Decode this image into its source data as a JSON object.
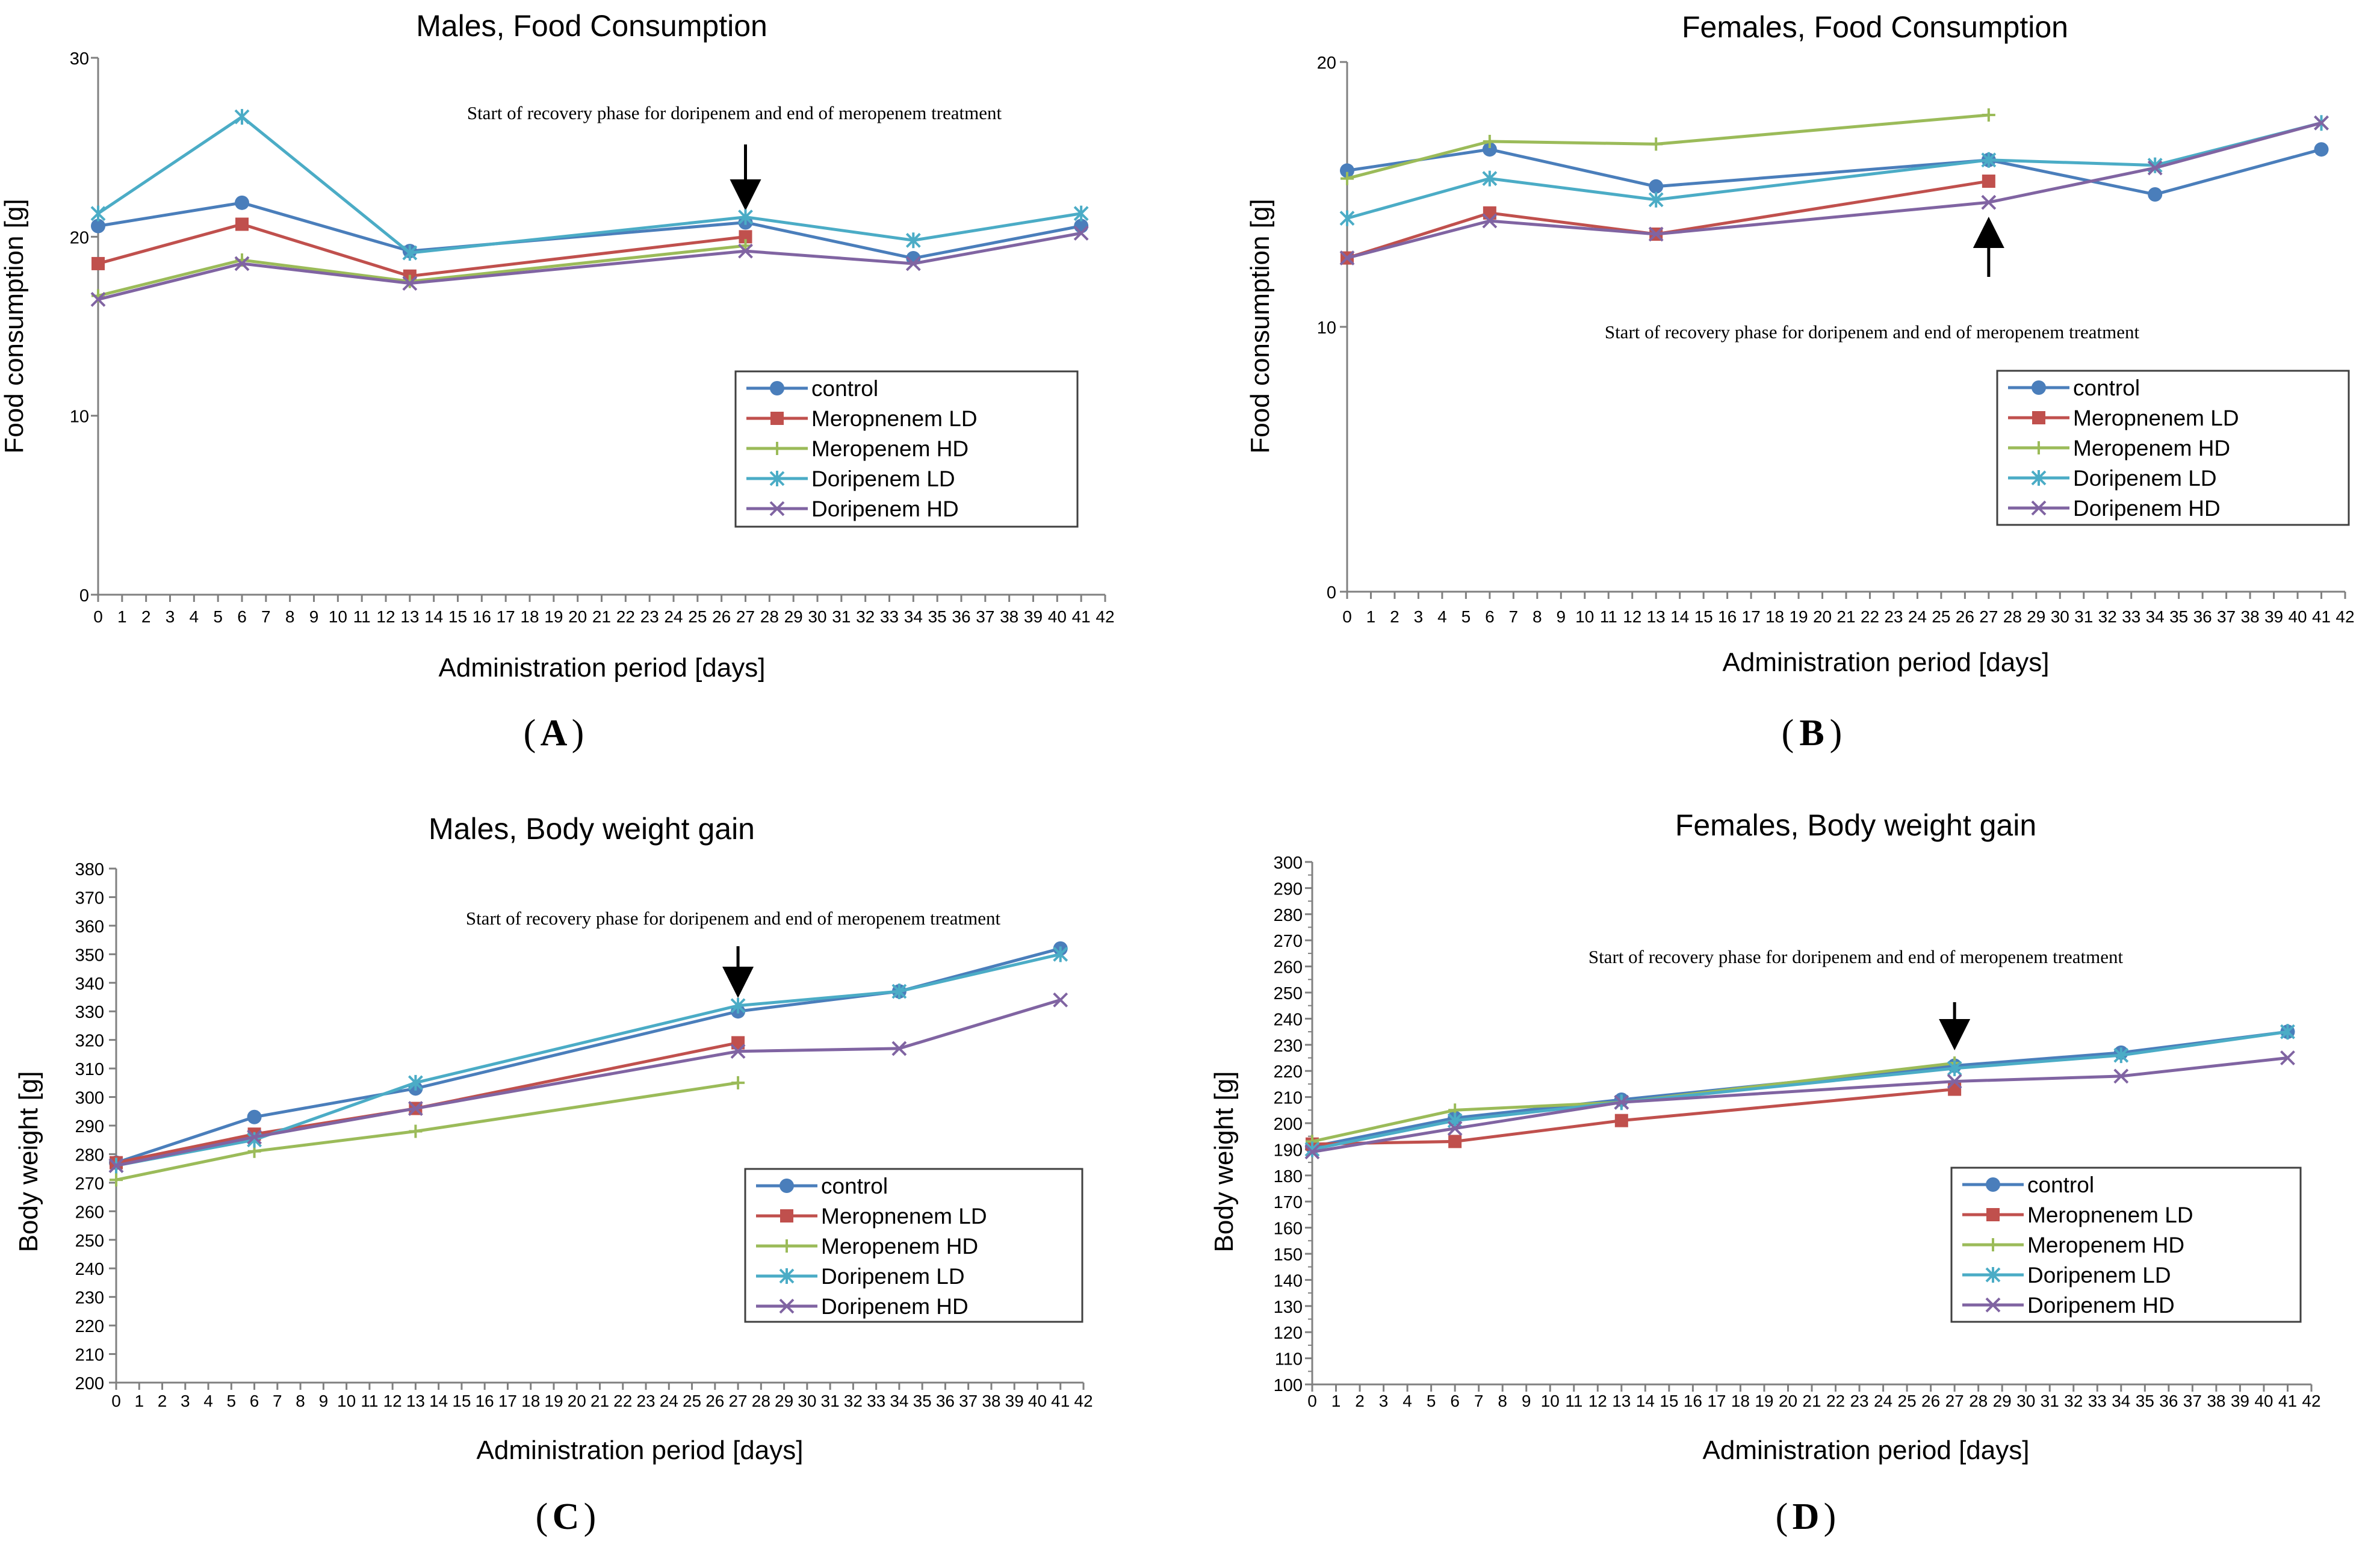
{
  "colors": {
    "control": "#4a7ebb",
    "mero_ld": "#c0504d",
    "mero_hd": "#9bbb59",
    "dori_ld": "#4bacc6",
    "dori_hd": "#8064a2",
    "axis": "#808080",
    "text": "#000000"
  },
  "legend_entries": [
    "control",
    "Meropnenem LD",
    "Meropenem HD",
    "Doripenem LD",
    "Doripenem HD"
  ],
  "chart_data": [
    {
      "panel_label": "(A)",
      "panel_letter": "A",
      "type": "line",
      "title": "Males, Food Consumption",
      "xlabel": "Administration period [days]",
      "ylabel": "Food consumption [g]",
      "xlim": [
        0,
        42
      ],
      "ylim": [
        0,
        30
      ],
      "yticks": [
        0,
        10,
        20,
        30
      ],
      "annotation": "Start of recovery phase for doripenem and end of meropenem treatment",
      "arrow_day": 27,
      "arrow_dir": "down",
      "series": [
        {
          "name": "control",
          "x": [
            0,
            6,
            13,
            27,
            34,
            41
          ],
          "values": [
            20.6,
            21.9,
            19.2,
            20.8,
            18.8,
            20.6
          ]
        },
        {
          "name": "Meropnenem LD",
          "x": [
            0,
            6,
            13,
            27
          ],
          "values": [
            18.5,
            20.7,
            17.8,
            20.0
          ]
        },
        {
          "name": "Meropenem HD",
          "x": [
            0,
            6,
            13,
            27
          ],
          "values": [
            16.7,
            18.7,
            17.5,
            19.5
          ]
        },
        {
          "name": "Doripenem LD",
          "x": [
            0,
            6,
            13,
            27,
            34,
            41
          ],
          "values": [
            21.3,
            26.7,
            19.1,
            21.1,
            19.8,
            21.3
          ]
        },
        {
          "name": "Doripenem HD",
          "x": [
            0,
            6,
            13,
            27,
            34,
            41
          ],
          "values": [
            16.5,
            18.5,
            17.4,
            19.2,
            18.5,
            20.2
          ]
        }
      ]
    },
    {
      "panel_label": "(B)",
      "panel_letter": "B",
      "type": "line",
      "title": "Females, Food Consumption",
      "xlabel": "Administration period [days]",
      "ylabel": "Food consumption [g]",
      "xlim": [
        0,
        42
      ],
      "ylim": [
        0,
        20
      ],
      "yticks": [
        0,
        10,
        20
      ],
      "annotation": "Start of recovery phase for doripenem and end of meropenem treatment",
      "arrow_day": 27,
      "arrow_dir": "up",
      "series": [
        {
          "name": "control",
          "x": [
            0,
            6,
            13,
            27,
            34,
            41
          ],
          "values": [
            15.9,
            16.7,
            15.3,
            16.3,
            15.0,
            16.7
          ]
        },
        {
          "name": "Meropnenem LD",
          "x": [
            0,
            6,
            13,
            27
          ],
          "values": [
            12.6,
            14.3,
            13.5,
            15.5
          ]
        },
        {
          "name": "Meropenem HD",
          "x": [
            0,
            6,
            13,
            27
          ],
          "values": [
            15.6,
            17.0,
            16.9,
            18.0
          ]
        },
        {
          "name": "Doripenem LD",
          "x": [
            0,
            6,
            13,
            27,
            34,
            41
          ],
          "values": [
            14.1,
            15.6,
            14.8,
            16.3,
            16.1,
            17.7
          ]
        },
        {
          "name": "Doripenem HD",
          "x": [
            0,
            6,
            13,
            27,
            34,
            41
          ],
          "values": [
            12.6,
            14.0,
            13.5,
            14.7,
            16.0,
            17.7
          ]
        }
      ]
    },
    {
      "panel_label": "(C)",
      "panel_letter": "C",
      "type": "line",
      "title": "Males, Body weight gain",
      "xlabel": "Administration period [days]",
      "ylabel": "Body weight [g]",
      "xlim": [
        0,
        42
      ],
      "ylim": [
        200,
        380
      ],
      "yticks": [
        200,
        210,
        220,
        230,
        240,
        250,
        260,
        270,
        280,
        290,
        300,
        310,
        320,
        330,
        340,
        350,
        360,
        370,
        380
      ],
      "annotation": "Start of recovery phase for doripenem and end of meropenem treatment",
      "arrow_day": 27,
      "arrow_dir": "down",
      "series": [
        {
          "name": "control",
          "x": [
            0,
            6,
            13,
            27,
            34,
            41
          ],
          "values": [
            277,
            293,
            303,
            330,
            337,
            352
          ]
        },
        {
          "name": "Meropnenem LD",
          "x": [
            0,
            6,
            13,
            27
          ],
          "values": [
            277,
            287,
            296,
            319
          ]
        },
        {
          "name": "Meropenem HD",
          "x": [
            0,
            6,
            13,
            27
          ],
          "values": [
            271,
            281,
            288,
            305
          ]
        },
        {
          "name": "Doripenem LD",
          "x": [
            0,
            6,
            13,
            27,
            34,
            41
          ],
          "values": [
            276,
            285,
            305,
            332,
            337,
            350
          ]
        },
        {
          "name": "Doripenem HD",
          "x": [
            0,
            6,
            13,
            27,
            34,
            41
          ],
          "values": [
            276,
            286,
            296,
            316,
            317,
            334
          ]
        }
      ]
    },
    {
      "panel_label": "(D)",
      "panel_letter": "D",
      "type": "line",
      "title": "Females, Body weight gain",
      "xlabel": "Administration period [days]",
      "ylabel": "Body weight [g]",
      "xlim": [
        0,
        42
      ],
      "ylim": [
        100,
        300
      ],
      "yticks": [
        100,
        110,
        120,
        130,
        140,
        150,
        160,
        170,
        180,
        190,
        200,
        210,
        220,
        230,
        240,
        250,
        260,
        270,
        280,
        290,
        300
      ],
      "annotation": "Start of recovery phase for doripenem and end of meropenem treatment",
      "arrow_day": 27,
      "arrow_dir": "down",
      "series": [
        {
          "name": "control",
          "x": [
            0,
            6,
            13,
            27,
            34,
            41
          ],
          "values": [
            191,
            202,
            209,
            222,
            227,
            235
          ]
        },
        {
          "name": "Meropnenem LD",
          "x": [
            0,
            6,
            13,
            27
          ],
          "values": [
            192,
            193,
            201,
            213
          ]
        },
        {
          "name": "Meropenem HD",
          "x": [
            0,
            6,
            13,
            27
          ],
          "values": [
            193,
            205,
            208,
            223
          ]
        },
        {
          "name": "Doripenem LD",
          "x": [
            0,
            6,
            13,
            27,
            34,
            41
          ],
          "values": [
            190,
            201,
            208,
            221,
            226,
            235
          ]
        },
        {
          "name": "Doripenem HD",
          "x": [
            0,
            6,
            13,
            27,
            34,
            41
          ],
          "values": [
            189,
            198,
            208,
            216,
            218,
            225
          ]
        }
      ]
    }
  ]
}
